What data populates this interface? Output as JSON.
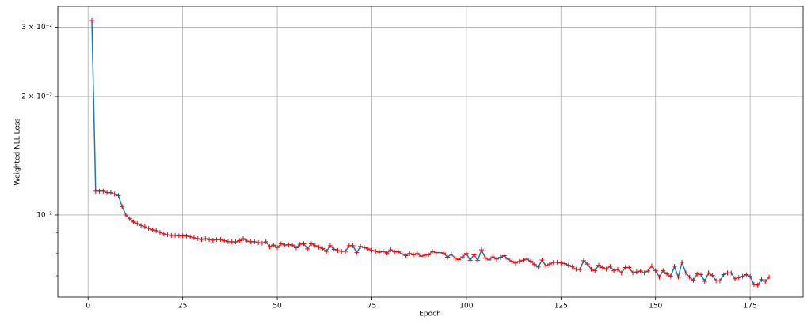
{
  "chart_data": {
    "type": "line",
    "x_label": "Epoch",
    "y_label": "Weighted NLL Loss",
    "x": [
      1,
      2,
      3,
      4,
      5,
      6,
      7,
      8,
      9,
      10,
      11,
      12,
      13,
      14,
      15,
      16,
      17,
      18,
      19,
      20,
      21,
      22,
      23,
      24,
      25,
      26,
      27,
      28,
      29,
      30,
      31,
      32,
      33,
      34,
      35,
      36,
      37,
      38,
      39,
      40,
      41,
      42,
      43,
      44,
      45,
      46,
      47,
      48,
      49,
      50,
      51,
      52,
      53,
      54,
      55,
      56,
      57,
      58,
      59,
      60,
      61,
      62,
      63,
      64,
      65,
      66,
      67,
      68,
      69,
      70,
      71,
      72,
      73,
      74,
      75,
      76,
      77,
      78,
      79,
      80,
      81,
      82,
      83,
      84,
      85,
      86,
      87,
      88,
      89,
      90,
      91,
      92,
      93,
      94,
      95,
      96,
      97,
      98,
      99,
      100,
      101,
      102,
      103,
      104,
      105,
      106,
      107,
      108,
      109,
      110,
      111,
      112,
      113,
      114,
      115,
      116,
      117,
      118,
      119,
      120,
      121,
      122,
      123,
      124,
      125,
      126,
      127,
      128,
      129,
      130,
      131,
      132,
      133,
      134,
      135,
      136,
      137,
      138,
      139,
      140,
      141,
      142,
      143,
      144,
      145,
      146,
      147,
      148,
      149,
      150,
      151,
      152,
      153,
      154,
      155,
      156,
      157,
      158,
      159,
      160,
      161,
      162,
      163,
      164,
      165,
      166,
      167,
      168,
      169,
      170,
      171,
      172,
      173,
      174,
      175,
      176,
      177,
      178,
      179,
      180
    ],
    "values": [
      0.0312,
      0.0115,
      0.0115,
      0.0115,
      0.0114,
      0.0114,
      0.0113,
      0.0112,
      0.0105,
      0.01,
      0.00978,
      0.0096,
      0.0095,
      0.0094,
      0.00933,
      0.00924,
      0.00916,
      0.00912,
      0.00903,
      0.00895,
      0.0089,
      0.00887,
      0.00887,
      0.00885,
      0.00885,
      0.00884,
      0.0088,
      0.00875,
      0.0087,
      0.00866,
      0.0087,
      0.00865,
      0.00862,
      0.00865,
      0.00866,
      0.0086,
      0.00855,
      0.00855,
      0.00854,
      0.0086,
      0.0087,
      0.00858,
      0.00855,
      0.00855,
      0.0085,
      0.00848,
      0.00855,
      0.0083,
      0.00838,
      0.00826,
      0.00845,
      0.00838,
      0.0084,
      0.00838,
      0.00825,
      0.00842,
      0.00845,
      0.0082,
      0.00845,
      0.00835,
      0.00828,
      0.00822,
      0.00808,
      0.00835,
      0.00818,
      0.00812,
      0.00808,
      0.00808,
      0.00835,
      0.00835,
      0.00802,
      0.00832,
      0.00826,
      0.0082,
      0.00813,
      0.00808,
      0.00804,
      0.00808,
      0.008,
      0.00815,
      0.00806,
      0.00806,
      0.00796,
      0.00788,
      0.00798,
      0.00792,
      0.00798,
      0.00785,
      0.0079,
      0.00792,
      0.00808,
      0.00802,
      0.00802,
      0.008,
      0.0078,
      0.00795,
      0.00777,
      0.0077,
      0.00782,
      0.00798,
      0.00766,
      0.00792,
      0.00766,
      0.00815,
      0.00778,
      0.00768,
      0.00782,
      0.00772,
      0.0078,
      0.00788,
      0.00772,
      0.00762,
      0.00754,
      0.00762,
      0.00767,
      0.00772,
      0.00762,
      0.00748,
      0.00737,
      0.00768,
      0.00742,
      0.0075,
      0.00758,
      0.00758,
      0.00755,
      0.00752,
      0.00745,
      0.00738,
      0.00728,
      0.00726,
      0.00765,
      0.0075,
      0.00728,
      0.00722,
      0.00745,
      0.00735,
      0.00728,
      0.0074,
      0.00722,
      0.00727,
      0.00712,
      0.00735,
      0.00735,
      0.00712,
      0.00716,
      0.0072,
      0.00712,
      0.0072,
      0.00742,
      0.00722,
      0.00695,
      0.00722,
      0.00708,
      0.00698,
      0.0074,
      0.00695,
      0.00758,
      0.00712,
      0.00695,
      0.00682,
      0.00708,
      0.00705,
      0.00678,
      0.00712,
      0.00702,
      0.0068,
      0.0068,
      0.00705,
      0.00712,
      0.00712,
      0.00688,
      0.00693,
      0.00698,
      0.00705,
      0.00698,
      0.00665,
      0.00663,
      0.00685,
      0.00678,
      0.00695
    ],
    "color": "#1f77b4",
    "marker_color": "#ff0000",
    "marker": "+",
    "xlim": [
      -8,
      189
    ],
    "xticks": [
      0,
      25,
      50,
      75,
      100,
      125,
      150,
      175
    ],
    "ylim": [
      0.00618,
      0.0339
    ],
    "y_scale": "log",
    "yticks": [
      {
        "value": 0.01,
        "label": "10⁻²"
      },
      {
        "value": 0.02,
        "label": "2 × 10⁻²"
      },
      {
        "value": 0.03,
        "label": "3 × 10⁻²"
      }
    ],
    "yminor_ticks": [
      0.007,
      0.008,
      0.009
    ],
    "grid": true
  }
}
